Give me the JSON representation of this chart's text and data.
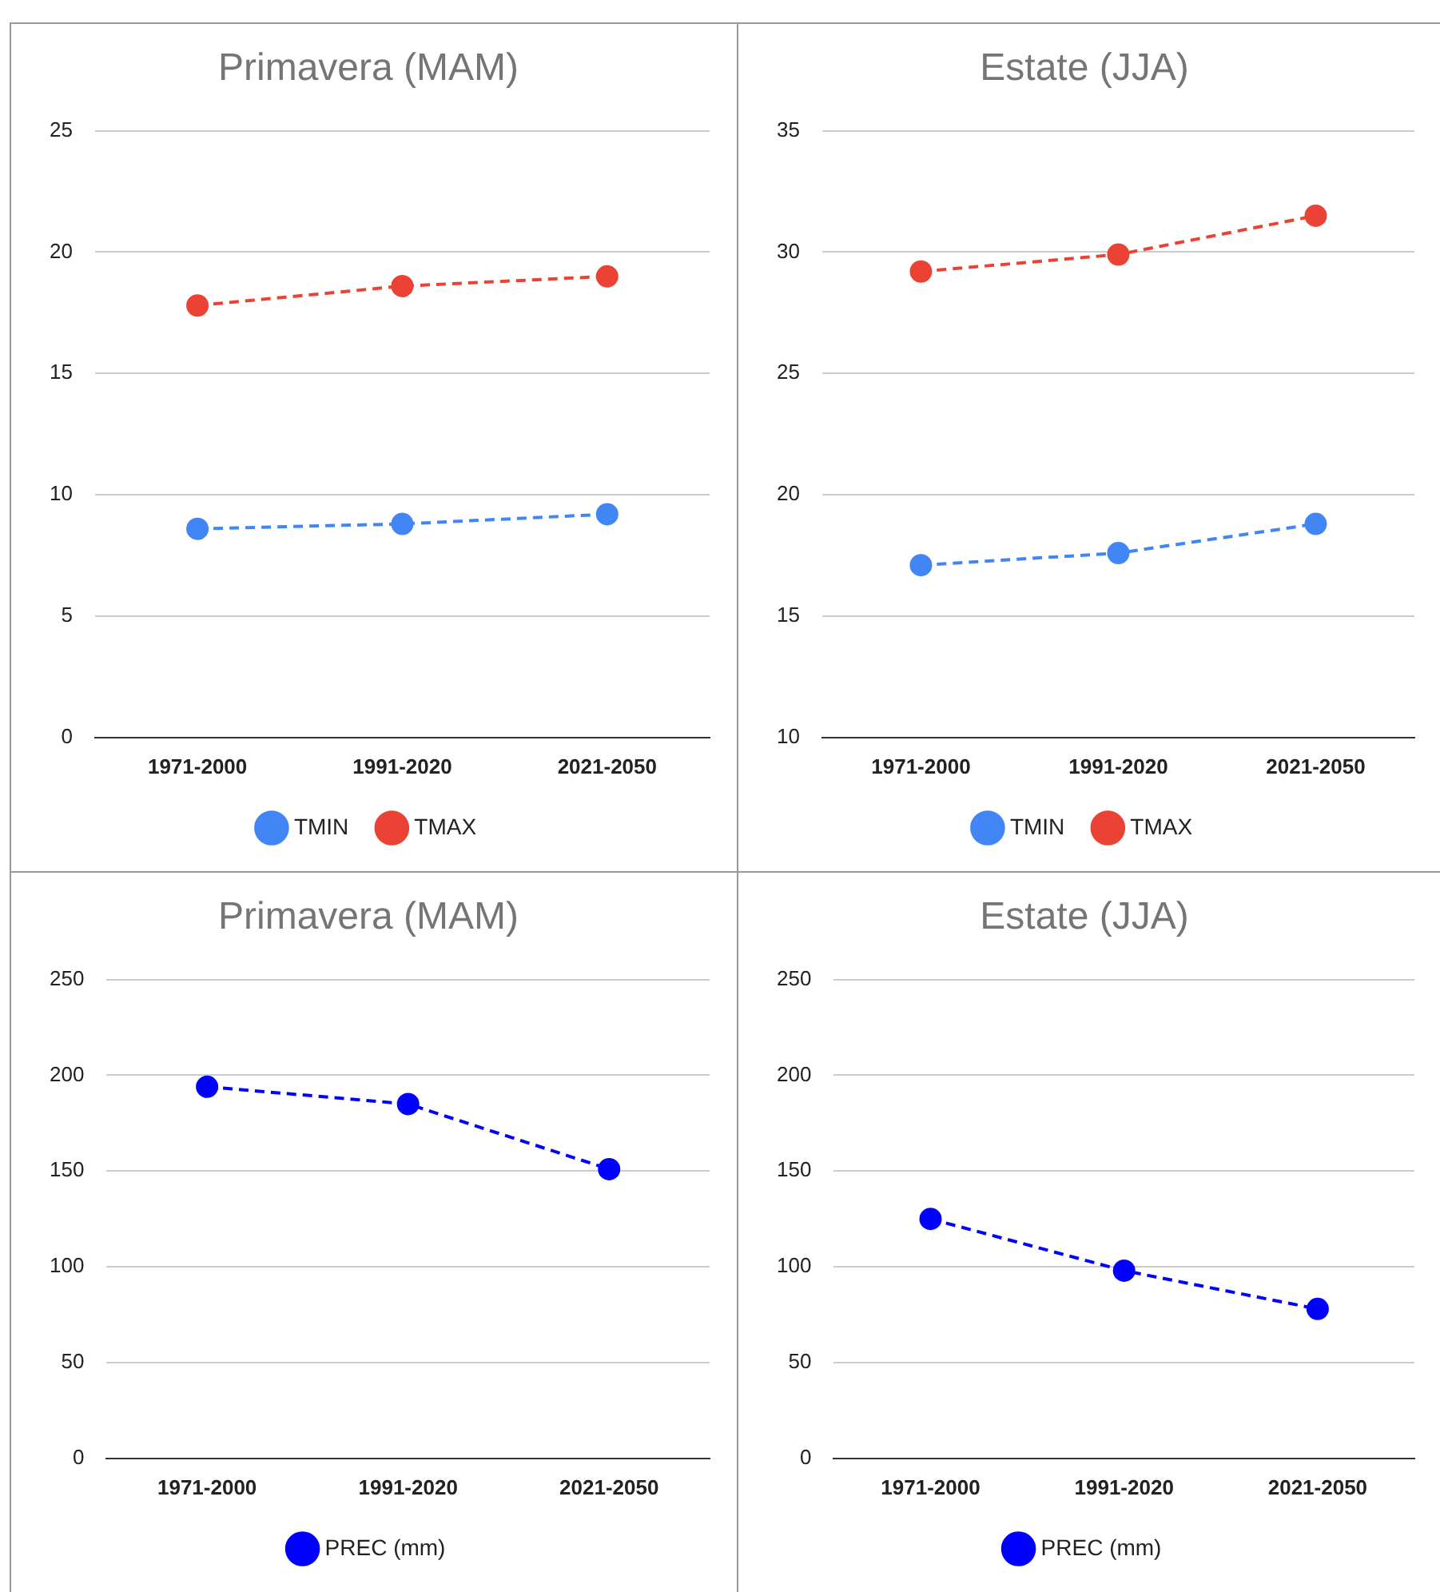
{
  "chart_data": [
    {
      "type": "line",
      "title": "Primavera (MAM)",
      "categories": [
        "1971-2000",
        "1991-2020",
        "2021-2050"
      ],
      "series": [
        {
          "name": "TMIN",
          "color": "#4285f4",
          "values": [
            8.6,
            8.8,
            9.2
          ]
        },
        {
          "name": "TMAX",
          "color": "#ea4335",
          "values": [
            17.8,
            18.6,
            19.0
          ]
        }
      ],
      "ylim": [
        0,
        25
      ],
      "yticks": [
        0,
        5,
        10,
        15,
        20,
        25
      ],
      "grid": "y",
      "legend": "bottom",
      "marker": "circle",
      "line_style": "dashed"
    },
    {
      "type": "line",
      "title": "Estate (JJA)",
      "categories": [
        "1971-2000",
        "1991-2020",
        "2021-2050"
      ],
      "series": [
        {
          "name": "TMIN",
          "color": "#4285f4",
          "values": [
            17.1,
            17.6,
            18.8
          ]
        },
        {
          "name": "TMAX",
          "color": "#ea4335",
          "values": [
            29.2,
            29.9,
            31.5
          ]
        }
      ],
      "ylim": [
        10,
        35
      ],
      "yticks": [
        10,
        15,
        20,
        25,
        30,
        35
      ],
      "grid": "y",
      "legend": "bottom",
      "marker": "circle",
      "line_style": "dashed"
    },
    {
      "type": "line",
      "title": "Primavera (MAM)",
      "categories": [
        "1971-2000",
        "1991-2020",
        "2021-2050"
      ],
      "series": [
        {
          "name": "PREC (mm)",
          "color": "#0000ff",
          "values": [
            194,
            185,
            151
          ]
        }
      ],
      "ylim": [
        0,
        250
      ],
      "yticks": [
        0,
        50,
        100,
        150,
        200,
        250
      ],
      "grid": "y",
      "legend": "bottom",
      "marker": "circle",
      "line_style": "dashed"
    },
    {
      "type": "line",
      "title": "Estate (JJA)",
      "categories": [
        "1971-2000",
        "1991-2020",
        "2021-2050"
      ],
      "series": [
        {
          "name": "PREC (mm)",
          "color": "#0000ff",
          "values": [
            125,
            98,
            78
          ]
        }
      ],
      "ylim": [
        0,
        250
      ],
      "yticks": [
        0,
        50,
        100,
        150,
        200,
        250
      ],
      "grid": "y",
      "legend": "bottom",
      "marker": "circle",
      "line_style": "dashed"
    }
  ]
}
